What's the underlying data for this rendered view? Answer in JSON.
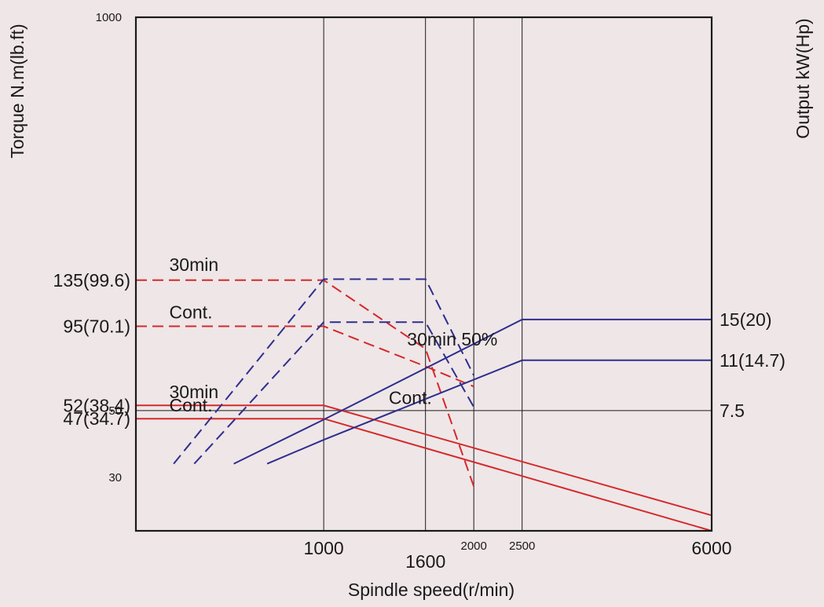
{
  "chart_data": {
    "type": "line",
    "title": "",
    "xlabel": "Spindle speed(r/min)",
    "ylabel_left": "Torque N.m(lb.ft)",
    "ylabel_right": "Output kW(Hp)",
    "x_scale": "log",
    "y_scale": "log",
    "xlim": [
      420,
      6000
    ],
    "ylim_torque": [
      20,
      1000
    ],
    "y_ticks_left_small": [
      "1000",
      "50",
      "30"
    ],
    "x_ticks": [
      {
        "value": 1000,
        "label": "1000",
        "style": "large-low"
      },
      {
        "value": 1600,
        "label": "1600",
        "style": "large-lower"
      },
      {
        "value": 2000,
        "label": "2000",
        "style": "small"
      },
      {
        "value": 2500,
        "label": "2500",
        "style": "small"
      },
      {
        "value": 6000,
        "label": "6000",
        "style": "large-low"
      }
    ],
    "vertical_gridlines": [
      1000,
      1600,
      2000,
      2500
    ],
    "horizontal_gridlines_torque": [
      50
    ],
    "torque_axis_labels": [
      {
        "value": 135,
        "label": "135(99.6)"
      },
      {
        "value": 95,
        "label": "95(70.1)"
      },
      {
        "value": 52,
        "label": "52(38.4)"
      },
      {
        "value": 47,
        "label": "47(34.7)"
      }
    ],
    "output_axis_labels": [
      {
        "value_kw": 15,
        "label": "15(20)"
      },
      {
        "value_kw": 11,
        "label": "11(14.7)"
      },
      {
        "value_kw": 7.5,
        "label": "7.5"
      }
    ],
    "output_to_torque_scale": {
      "kw": 7.5,
      "torque": 50
    },
    "series": [
      {
        "group": "torque",
        "color": "#d42a2a",
        "dash": true,
        "points": [
          [
            420,
            135
          ],
          [
            1000,
            135
          ],
          [
            1600,
            80
          ],
          [
            2000,
            28
          ]
        ]
      },
      {
        "group": "torque",
        "color": "#d42a2a",
        "dash": true,
        "points": [
          [
            420,
            95
          ],
          [
            1000,
            95
          ],
          [
            1600,
            70
          ],
          [
            2000,
            60
          ]
        ]
      },
      {
        "group": "torque",
        "color": "#d42a2a",
        "dash": false,
        "points": [
          [
            420,
            52
          ],
          [
            1000,
            52
          ],
          [
            6000,
            22.5
          ]
        ]
      },
      {
        "group": "torque",
        "color": "#d42a2a",
        "dash": false,
        "points": [
          [
            420,
            47
          ],
          [
            1000,
            47
          ],
          [
            6000,
            19.4
          ]
        ]
      },
      {
        "group": "output",
        "color": "#2e2e8e",
        "dash": true,
        "points": [
          [
            500,
            5
          ],
          [
            1000,
            20.4
          ],
          [
            1600,
            20.4
          ],
          [
            2000,
            9.8
          ]
        ]
      },
      {
        "group": "output",
        "color": "#2e2e8e",
        "dash": true,
        "points": [
          [
            550,
            5
          ],
          [
            1000,
            14.7
          ],
          [
            1600,
            14.7
          ],
          [
            2000,
            7.7
          ]
        ]
      },
      {
        "group": "output",
        "color": "#2e2e8e",
        "dash": false,
        "points": [
          [
            660,
            5
          ],
          [
            1000,
            7.0
          ],
          [
            2500,
            15
          ],
          [
            6000,
            15
          ]
        ]
      },
      {
        "group": "output",
        "color": "#2e2e8e",
        "dash": false,
        "points": [
          [
            770,
            5
          ],
          [
            1000,
            6.0
          ],
          [
            2500,
            11
          ],
          [
            6000,
            11
          ]
        ]
      }
    ],
    "annotations": [
      {
        "text": "30min",
        "x": 490,
        "torque": 145
      },
      {
        "text": "Cont.",
        "x": 490,
        "torque": 101
      },
      {
        "text": "30min",
        "x": 490,
        "torque": 55
      },
      {
        "text": "Cont.",
        "x": 490,
        "torque": 49.6
      },
      {
        "text": "30min 50%",
        "x": 1470,
        "torque": 82
      },
      {
        "text": "Cont.",
        "x": 1350,
        "torque": 52.5
      }
    ]
  }
}
